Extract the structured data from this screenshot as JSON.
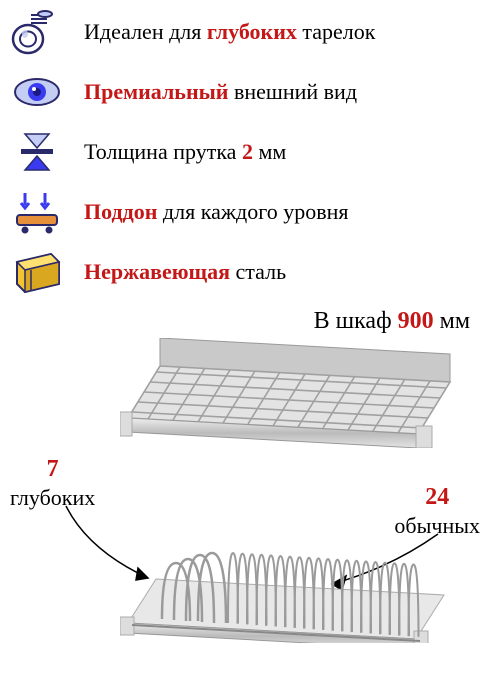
{
  "features": [
    {
      "pre": "Идеален для ",
      "hl": "глубоких",
      "post": " тарелок",
      "hl_color": "#c41818",
      "icon": "plates"
    },
    {
      "pre": "",
      "hl": "Премиальный",
      "post": " внешний вид",
      "hl_color": "#c41818",
      "icon": "eye"
    },
    {
      "pre": "Толщина прутка ",
      "hl": "2",
      "post": " мм",
      "hl_color": "#c41818",
      "icon": "thickness"
    },
    {
      "pre": "",
      "hl": "Поддон",
      "post": " для каждого уровня",
      "hl_color": "#c41818",
      "icon": "tray"
    },
    {
      "pre": "",
      "hl": "Нержавеющая",
      "post": " сталь",
      "hl_color": "#c41818",
      "icon": "steel"
    }
  ],
  "cabinet": {
    "pre": "В шкаф ",
    "val": "900",
    "post": " мм",
    "val_color": "#c41818"
  },
  "deep": {
    "num": "7",
    "label": "глубоких",
    "num_color": "#c41818"
  },
  "regular": {
    "num": "24",
    "label": "обычных",
    "num_color": "#c41818"
  },
  "colors": {
    "metal_light": "#d8d8d8",
    "metal_mid": "#b4b4b4",
    "metal_dark": "#888",
    "wire": "#a8a8a8",
    "accent_red": "#c41818",
    "accent_blue_light": "#c4cdf4",
    "accent_blue": "#3a3af0",
    "accent_orange": "#e6903a",
    "accent_yellow": "#f4c430"
  }
}
